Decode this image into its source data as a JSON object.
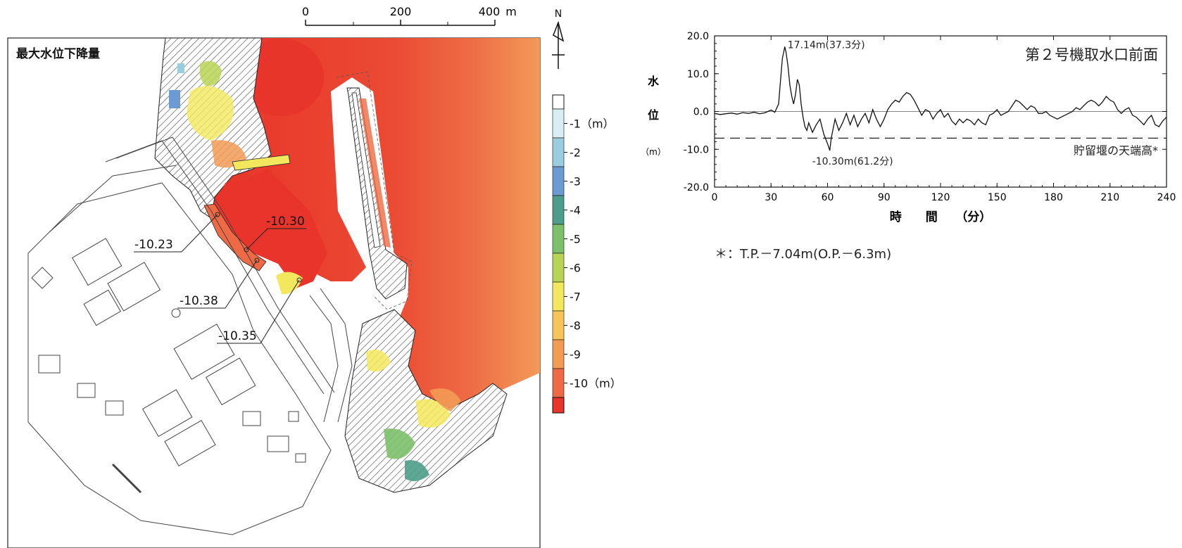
{
  "map": {
    "title": "最大水位下降量",
    "scale": {
      "labels": [
        "0",
        "200",
        "400"
      ],
      "unit": "m"
    },
    "north_label": "N",
    "annotations": [
      {
        "id": "a1",
        "text": "-10.30"
      },
      {
        "id": "a2",
        "text": "-10.23"
      },
      {
        "id": "a3",
        "text": "-10.38"
      },
      {
        "id": "a4",
        "text": "-10.35"
      }
    ],
    "colors": {
      "deep_red": "#e8342a",
      "red": "#ea4a34",
      "orange_red": "#ee6a44",
      "orange": "#f19556",
      "yellow": "#f6e35c",
      "green": "#8fca5d",
      "teal": "#5fb88c",
      "blue": "#6a9bd6"
    },
    "legend": {
      "ticks": [
        {
          "label": "-1（m）",
          "color": "#d8eef2"
        },
        {
          "label": "-2",
          "color": "#9bcde0"
        },
        {
          "label": "-3",
          "color": "#6c9bd3"
        },
        {
          "label": "-4",
          "color": "#4d9d8a"
        },
        {
          "label": "-5",
          "color": "#7cc06a"
        },
        {
          "label": "-6",
          "color": "#b8d455"
        },
        {
          "label": "-7",
          "color": "#f3e85d"
        },
        {
          "label": "-8",
          "color": "#f6c45a"
        },
        {
          "label": "-9",
          "color": "#f29b55"
        },
        {
          "label": "-10（m）",
          "color": "#ee6a44"
        }
      ],
      "bottom_color": "#e8342a",
      "top_color": "#ffffff"
    }
  },
  "chart_data": {
    "type": "line",
    "title": "第２号機取水口前面",
    "ylabel_chars": [
      "水",
      "位"
    ],
    "yunit": "（m）",
    "xlabel": "時　　間　　（分）",
    "xlim": [
      0,
      240
    ],
    "ylim": [
      -20,
      20
    ],
    "xticks": [
      0,
      30,
      60,
      90,
      120,
      150,
      180,
      210,
      240
    ],
    "yticks": [
      20,
      10,
      0,
      -10,
      -20
    ],
    "ytick_labels": [
      "20.0",
      "10.0",
      "0.0",
      "-10.0",
      "-20.0"
    ],
    "reference_line": {
      "value": -7.04,
      "label": "貯留堰の天端高*"
    },
    "max_annotation": {
      "x": 37.3,
      "y": 17.14,
      "text": "17.14m(37.3分)"
    },
    "min_annotation": {
      "x": 61.2,
      "y": -10.3,
      "text": "-10.30m(61.2分)"
    },
    "footnote": "＊：T.P.－7.04m(O.P.－6.3m)",
    "series": [
      {
        "x": [
          0,
          3,
          6,
          9,
          12,
          15,
          18,
          21,
          24,
          27,
          30,
          32,
          34,
          35,
          36,
          37.3,
          38,
          39,
          40,
          41,
          42,
          43,
          44,
          45,
          46,
          47,
          48,
          49,
          50,
          52,
          54,
          56,
          58,
          60,
          61.2,
          62,
          64,
          66,
          68,
          70,
          72,
          74,
          76,
          78,
          80,
          82,
          84,
          86,
          88,
          90,
          92,
          94,
          96,
          98,
          100,
          102,
          104,
          106,
          108,
          110,
          112,
          114,
          116,
          118,
          120,
          122,
          124,
          126,
          128,
          130,
          132,
          134,
          136,
          138,
          140,
          142,
          144,
          146,
          148,
          150,
          152,
          154,
          156,
          158,
          160,
          162,
          164,
          166,
          168,
          170,
          172,
          174,
          176,
          178,
          180,
          182,
          184,
          186,
          188,
          190,
          192,
          194,
          196,
          198,
          200,
          202,
          204,
          206,
          208,
          210,
          212,
          214,
          216,
          218,
          220,
          222,
          224,
          226,
          228,
          230,
          232,
          234,
          236,
          238,
          240
        ],
        "y": [
          -0.5,
          -0.8,
          -0.6,
          -0.4,
          -0.7,
          -0.3,
          -0.5,
          -0.2,
          -0.6,
          -0.3,
          0.4,
          -0.2,
          2.0,
          8.0,
          14.0,
          17.14,
          15.5,
          12.0,
          7.0,
          4.0,
          2.0,
          4.5,
          8.5,
          7.0,
          2.0,
          -1.5,
          -4.0,
          -5.0,
          -3.0,
          -5.5,
          -3.5,
          -2.0,
          -6.0,
          -8.5,
          -10.3,
          -7.0,
          -2.0,
          -5.0,
          -3.0,
          -0.5,
          -3.5,
          -1.0,
          -4.0,
          -2.0,
          -0.5,
          -3.0,
          0.5,
          -2.0,
          -4.0,
          -2.0,
          0.5,
          2.0,
          3.0,
          2.5,
          4.0,
          5.0,
          4.5,
          3.0,
          1.0,
          -1.0,
          0.5,
          0.0,
          -2.0,
          -0.5,
          0.5,
          -1.5,
          -0.5,
          -2.5,
          -3.5,
          -2.0,
          -3.0,
          -2.0,
          -2.5,
          -3.5,
          -2.0,
          -3.0,
          -3.5,
          -1.0,
          -0.5,
          0.5,
          -1.0,
          -0.5,
          0.0,
          1.5,
          3.0,
          2.5,
          1.5,
          0.5,
          1.5,
          1.0,
          -0.5,
          -0.5,
          0.0,
          -1.0,
          -1.5,
          -2.0,
          -1.5,
          -1.0,
          -0.5,
          0.0,
          1.0,
          0.5,
          1.5,
          2.5,
          3.0,
          2.5,
          1.5,
          2.5,
          4.0,
          3.0,
          2.5,
          0.5,
          -0.5,
          0.5,
          1.0,
          -1.0,
          -1.5,
          -2.5,
          -3.5,
          -2.0,
          -1.0,
          -3.5,
          -4.0,
          -2.5,
          -1.5
        ]
      }
    ]
  }
}
